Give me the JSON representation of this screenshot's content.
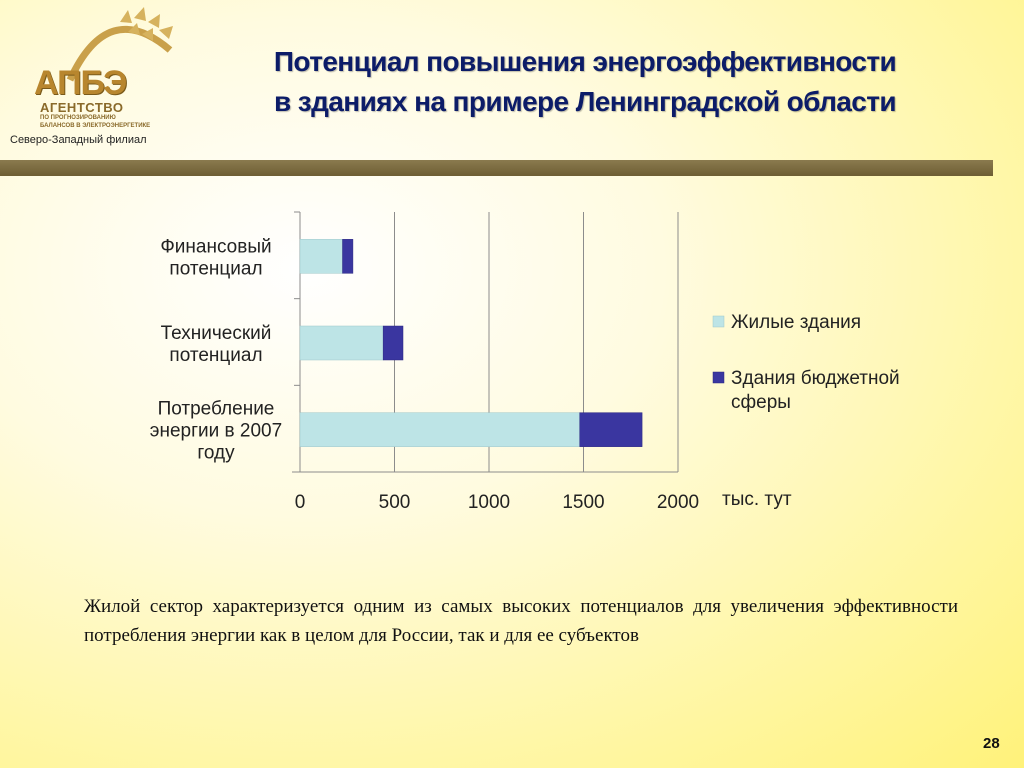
{
  "header": {
    "logo": {
      "abbr": "АПБЭ",
      "agency": "АГЕНТСТВО",
      "sub1": "ПО ПРОГНОЗИРОВАНИЮ",
      "sub2": "БАЛАНСОВ В ЭЛЕКТРОЭНЕРГЕТИКЕ"
    },
    "branch": "Северо-Западный филиал",
    "title_line1": "Потенциал повышения энергоэффективности",
    "title_line2": "в зданиях на примере Ленинградской области"
  },
  "chart_data": {
    "type": "bar",
    "orientation": "horizontal",
    "stacked": true,
    "categories": [
      [
        "Финансовый",
        "потенциал"
      ],
      [
        "Технический",
        "потенциал"
      ],
      [
        "Потребление",
        "энергии в 2007",
        "году"
      ]
    ],
    "series": [
      {
        "name": "Жилые здания",
        "values": [
          225,
          440,
          1480
        ],
        "color": "#bde4e6"
      },
      {
        "name": "Здания бюджетной сферы",
        "legend_lines": [
          "Здания бюджетной",
          "сферы"
        ],
        "values": [
          55,
          105,
          330
        ],
        "color": "#3a36a0"
      }
    ],
    "xlim": [
      0,
      2000
    ],
    "xticks": [
      0,
      500,
      1000,
      1500,
      2000
    ],
    "xunit": "тыс. тут",
    "grid": true,
    "legend_position": "right"
  },
  "body_text": "Жилой сектор характеризуется одним из самых высоких потенциалов для увеличения эффективности потребления энергии как в целом для России, так и для ее субъектов",
  "page_number": "28"
}
